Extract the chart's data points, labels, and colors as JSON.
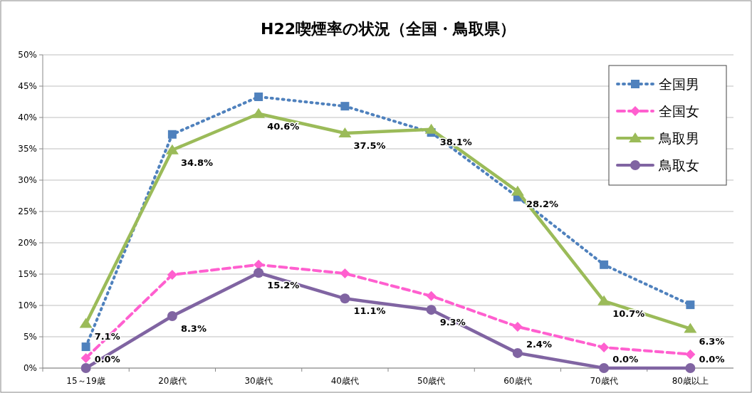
{
  "chart_data": {
    "type": "line",
    "title": "H22喫煙率の状況（全国・鳥取県）",
    "categories": [
      "15～19歳",
      "20歳代",
      "30歳代",
      "40歳代",
      "50歳代",
      "60歳代",
      "70歳代",
      "80歳以上"
    ],
    "series": [
      {
        "name": "全国男",
        "color": "#4f81bd",
        "marker": "square",
        "line_style": "dotted",
        "values": [
          3.4,
          37.3,
          43.3,
          41.8,
          37.6,
          27.3,
          16.5,
          10.1
        ]
      },
      {
        "name": "全国女",
        "color": "#ff5fcf",
        "marker": "diamond",
        "line_style": "dashed",
        "values": [
          1.6,
          14.9,
          16.5,
          15.1,
          11.5,
          6.6,
          3.3,
          2.2
        ]
      },
      {
        "name": "鳥取男",
        "color": "#9bbb59",
        "marker": "triangle",
        "line_style": "solid",
        "values": [
          7.1,
          34.8,
          40.6,
          37.5,
          38.1,
          28.2,
          10.7,
          6.3
        ],
        "value_labels": [
          "7.1%",
          "34.8%",
          "40.6%",
          "37.5%",
          "38.1%",
          "28.2%",
          "10.7%",
          "6.3%"
        ]
      },
      {
        "name": "鳥取女",
        "color": "#8064a2",
        "marker": "circle",
        "line_style": "solid",
        "values": [
          0.0,
          8.3,
          15.2,
          11.1,
          9.3,
          2.4,
          0.0,
          0.0
        ],
        "value_labels": [
          "0.0%",
          "8.3%",
          "15.2%",
          "11.1%",
          "9.3%",
          "2.4%",
          "0.0%",
          "0.0%"
        ]
      }
    ],
    "ylim": [
      0,
      50
    ],
    "yticks": [
      {
        "value": 0,
        "label": "0%"
      },
      {
        "value": 5,
        "label": "5%"
      },
      {
        "value": 10,
        "label": "10%"
      },
      {
        "value": 15,
        "label": "15%"
      },
      {
        "value": 20,
        "label": "20%"
      },
      {
        "value": 25,
        "label": "25%"
      },
      {
        "value": 30,
        "label": "30%"
      },
      {
        "value": 35,
        "label": "35%"
      },
      {
        "value": 40,
        "label": "40%"
      },
      {
        "value": 45,
        "label": "45%"
      },
      {
        "value": 50,
        "label": "50%"
      }
    ],
    "grid": "y",
    "legend": "top right"
  }
}
